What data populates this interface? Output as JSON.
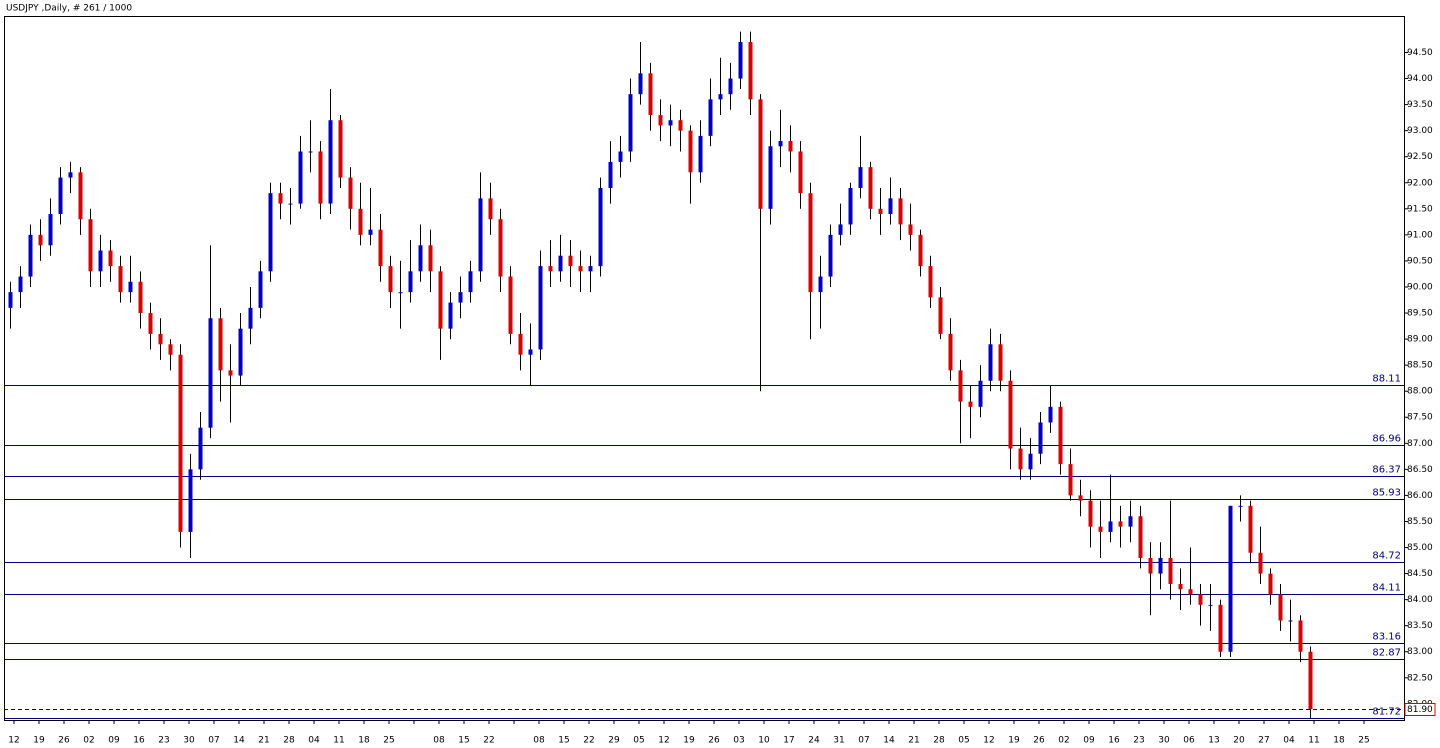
{
  "chart_data": {
    "type": "candlestick",
    "title": "USDJPY ,Daily, # 261 / 1000",
    "up_color": "#0000cc",
    "down_color": "#dd0000",
    "level_color": "#000080",
    "ylim": [
      81.69,
      95.2
    ],
    "yticks": [
      {
        "value": 82,
        "label": "82.00"
      },
      {
        "value": 82.5,
        "label": "82.50"
      },
      {
        "value": 83,
        "label": "83.00"
      },
      {
        "value": 83.5,
        "label": "83.50"
      },
      {
        "value": 84,
        "label": "84.00"
      },
      {
        "value": 84.5,
        "label": "84.50"
      },
      {
        "value": 85,
        "label": "85.00"
      },
      {
        "value": 85.5,
        "label": "85.50"
      },
      {
        "value": 86,
        "label": "86.00"
      },
      {
        "value": 86.5,
        "label": "86.50"
      },
      {
        "value": 87,
        "label": "87.00"
      },
      {
        "value": 87.5,
        "label": "87.50"
      },
      {
        "value": 88,
        "label": "88.00"
      },
      {
        "value": 88.5,
        "label": "88.50"
      },
      {
        "value": 89,
        "label": "89.00"
      },
      {
        "value": 89.5,
        "label": "89.50"
      },
      {
        "value": 90,
        "label": "90.00"
      },
      {
        "value": 90.5,
        "label": "90.50"
      },
      {
        "value": 91,
        "label": "91.00"
      },
      {
        "value": 91.5,
        "label": "91.50"
      },
      {
        "value": 92,
        "label": "92.00"
      },
      {
        "value": 92.5,
        "label": "92.50"
      },
      {
        "value": 93,
        "label": "93.00"
      },
      {
        "value": 93.5,
        "label": "93.50"
      },
      {
        "value": 94,
        "label": "94.00"
      },
      {
        "value": 94.5,
        "label": "94.50"
      }
    ],
    "levels": [
      88.11,
      86.96,
      86.37,
      85.93,
      84.72,
      84.11,
      83.16,
      82.87,
      81.72
    ],
    "current_price": {
      "value": 81.9,
      "label": "81.90"
    },
    "x_labels": [
      "12",
      "19",
      "26",
      "02",
      "09",
      "16",
      "23",
      "30",
      "07",
      "14",
      "21",
      "28",
      "04",
      "11",
      "18",
      "25",
      null,
      "08",
      "15",
      "22",
      null,
      "08",
      "15",
      "22",
      "29",
      "05",
      "12",
      "19",
      "26",
      "03",
      "10",
      "17",
      "24",
      "31",
      "07",
      "14",
      "21",
      "28",
      "05",
      "12",
      "19",
      "26",
      "02",
      "09",
      "16",
      "23",
      "30",
      "06",
      "13",
      "20",
      "27",
      "04",
      "11",
      "18",
      "25"
    ],
    "ohlc": [
      [
        89.6,
        90.1,
        89.2,
        89.9
      ],
      [
        89.9,
        90.4,
        89.6,
        90.2
      ],
      [
        90.2,
        91.2,
        90.0,
        91.0
      ],
      [
        91.0,
        91.3,
        90.5,
        90.8
      ],
      [
        90.8,
        91.7,
        90.6,
        91.4
      ],
      [
        91.4,
        92.3,
        91.2,
        92.1
      ],
      [
        92.1,
        92.4,
        91.8,
        92.2
      ],
      [
        92.2,
        92.3,
        91.0,
        91.3
      ],
      [
        91.3,
        91.5,
        90.0,
        90.3
      ],
      [
        90.3,
        91.0,
        90.0,
        90.7
      ],
      [
        90.7,
        90.9,
        90.1,
        90.4
      ],
      [
        90.4,
        90.6,
        89.7,
        89.9
      ],
      [
        89.9,
        90.6,
        89.7,
        90.1
      ],
      [
        90.1,
        90.3,
        89.2,
        89.5
      ],
      [
        89.5,
        89.7,
        88.8,
        89.1
      ],
      [
        89.1,
        89.4,
        88.6,
        88.9
      ],
      [
        88.9,
        89.0,
        88.4,
        88.7
      ],
      [
        88.7,
        88.9,
        85.0,
        85.3
      ],
      [
        85.3,
        86.8,
        84.8,
        86.5
      ],
      [
        86.5,
        87.6,
        86.3,
        87.3
      ],
      [
        87.3,
        90.8,
        87.1,
        89.4
      ],
      [
        89.4,
        89.6,
        87.8,
        88.4
      ],
      [
        88.4,
        88.9,
        87.4,
        88.3
      ],
      [
        88.3,
        89.5,
        88.1,
        89.2
      ],
      [
        89.2,
        90.0,
        88.9,
        89.6
      ],
      [
        89.6,
        90.5,
        89.4,
        90.3
      ],
      [
        90.3,
        92.0,
        90.1,
        91.8
      ],
      [
        91.8,
        92.0,
        91.3,
        91.6
      ],
      [
        91.6,
        91.9,
        91.2,
        91.6
      ],
      [
        91.6,
        92.9,
        91.5,
        92.6
      ],
      [
        92.6,
        93.2,
        92.2,
        92.6
      ],
      [
        92.6,
        92.8,
        91.3,
        91.6
      ],
      [
        91.6,
        93.8,
        91.4,
        93.2
      ],
      [
        93.2,
        93.3,
        91.9,
        92.1
      ],
      [
        92.1,
        92.3,
        91.1,
        91.5
      ],
      [
        91.5,
        92.0,
        90.8,
        91.0
      ],
      [
        91.0,
        91.9,
        90.8,
        91.1
      ],
      [
        91.1,
        91.4,
        90.1,
        90.4
      ],
      [
        90.4,
        90.6,
        89.6,
        89.9
      ],
      [
        89.9,
        90.5,
        89.2,
        89.9
      ],
      [
        89.9,
        90.9,
        89.7,
        90.3
      ],
      [
        90.3,
        91.2,
        90.1,
        90.8
      ],
      [
        90.8,
        91.1,
        89.9,
        90.3
      ],
      [
        90.3,
        90.4,
        88.6,
        89.2
      ],
      [
        89.2,
        89.9,
        89.0,
        89.7
      ],
      [
        89.7,
        90.2,
        89.4,
        89.9
      ],
      [
        89.9,
        90.5,
        89.7,
        90.3
      ],
      [
        90.3,
        92.2,
        90.1,
        91.7
      ],
      [
        91.7,
        92.0,
        91.0,
        91.3
      ],
      [
        91.3,
        91.5,
        89.9,
        90.2
      ],
      [
        90.2,
        90.4,
        88.9,
        89.1
      ],
      [
        89.1,
        89.5,
        88.4,
        88.7
      ],
      [
        88.7,
        89.3,
        88.1,
        88.8
      ],
      [
        88.8,
        90.7,
        88.6,
        90.4
      ],
      [
        90.4,
        90.9,
        90.0,
        90.3
      ],
      [
        90.3,
        91.0,
        90.1,
        90.6
      ],
      [
        90.6,
        90.9,
        90.0,
        90.4
      ],
      [
        90.4,
        90.7,
        89.9,
        90.3
      ],
      [
        90.3,
        90.6,
        89.9,
        90.4
      ],
      [
        90.4,
        92.1,
        90.2,
        91.9
      ],
      [
        91.9,
        92.8,
        91.6,
        92.4
      ],
      [
        92.4,
        92.9,
        92.1,
        92.6
      ],
      [
        92.6,
        94.0,
        92.4,
        93.7
      ],
      [
        93.7,
        94.7,
        93.5,
        94.1
      ],
      [
        94.1,
        94.3,
        93.0,
        93.3
      ],
      [
        93.3,
        93.6,
        92.8,
        93.1
      ],
      [
        93.1,
        93.5,
        92.7,
        93.2
      ],
      [
        93.2,
        93.4,
        92.6,
        93.0
      ],
      [
        93.0,
        93.1,
        91.6,
        92.2
      ],
      [
        92.2,
        93.2,
        92.0,
        92.9
      ],
      [
        92.9,
        94.0,
        92.7,
        93.6
      ],
      [
        93.6,
        94.4,
        93.3,
        93.7
      ],
      [
        93.7,
        94.3,
        93.4,
        94.0
      ],
      [
        94.0,
        94.9,
        93.8,
        94.7
      ],
      [
        94.7,
        94.9,
        93.3,
        93.6
      ],
      [
        93.6,
        93.7,
        88.0,
        91.5
      ],
      [
        91.5,
        93.0,
        91.2,
        92.7
      ],
      [
        92.7,
        93.4,
        92.3,
        92.8
      ],
      [
        92.8,
        93.1,
        92.2,
        92.6
      ],
      [
        92.6,
        92.8,
        91.5,
        91.8
      ],
      [
        91.8,
        92.0,
        89.0,
        89.9
      ],
      [
        89.9,
        90.6,
        89.2,
        90.2
      ],
      [
        90.2,
        91.2,
        90.0,
        91.0
      ],
      [
        91.0,
        91.6,
        90.8,
        91.2
      ],
      [
        91.2,
        92.0,
        91.0,
        91.9
      ],
      [
        91.9,
        92.9,
        91.7,
        92.3
      ],
      [
        92.3,
        92.4,
        91.3,
        91.5
      ],
      [
        91.5,
        91.9,
        91.0,
        91.4
      ],
      [
        91.4,
        92.1,
        91.2,
        91.7
      ],
      [
        91.7,
        91.9,
        90.9,
        91.2
      ],
      [
        91.2,
        91.6,
        90.7,
        91.0
      ],
      [
        91.0,
        91.1,
        90.2,
        90.4
      ],
      [
        90.4,
        90.6,
        89.6,
        89.8
      ],
      [
        89.8,
        90.0,
        89.0,
        89.1
      ],
      [
        89.1,
        89.4,
        88.2,
        88.4
      ],
      [
        88.4,
        88.6,
        87.0,
        87.8
      ],
      [
        87.8,
        88.1,
        87.1,
        87.7
      ],
      [
        87.7,
        88.5,
        87.5,
        88.2
      ],
      [
        88.2,
        89.2,
        88.0,
        88.9
      ],
      [
        88.9,
        89.1,
        88.0,
        88.2
      ],
      [
        88.2,
        88.4,
        86.5,
        86.9
      ],
      [
        86.9,
        87.3,
        86.3,
        86.5
      ],
      [
        86.5,
        87.1,
        86.3,
        86.8
      ],
      [
        86.8,
        87.6,
        86.6,
        87.4
      ],
      [
        87.4,
        88.1,
        87.2,
        87.7
      ],
      [
        87.7,
        87.8,
        86.4,
        86.6
      ],
      [
        86.6,
        86.9,
        85.9,
        86.0
      ],
      [
        86.0,
        86.3,
        85.6,
        85.9
      ],
      [
        85.9,
        86.1,
        85.0,
        85.4
      ],
      [
        85.4,
        85.9,
        84.8,
        85.3
      ],
      [
        85.3,
        86.4,
        85.1,
        85.5
      ],
      [
        85.5,
        85.8,
        85.0,
        85.4
      ],
      [
        85.4,
        85.9,
        85.1,
        85.6
      ],
      [
        85.6,
        85.8,
        84.6,
        84.8
      ],
      [
        84.8,
        85.1,
        83.7,
        84.5
      ],
      [
        84.5,
        85.1,
        84.2,
        84.8
      ],
      [
        84.8,
        85.9,
        84.0,
        84.3
      ],
      [
        84.3,
        84.6,
        83.8,
        84.2
      ],
      [
        84.2,
        85.0,
        83.9,
        84.1
      ],
      [
        84.1,
        84.3,
        83.5,
        83.9
      ],
      [
        83.9,
        84.3,
        83.4,
        83.9
      ],
      [
        83.9,
        84.0,
        82.9,
        83.0
      ],
      [
        83.0,
        85.8,
        82.9,
        85.8
      ],
      [
        85.8,
        86.0,
        85.5,
        85.8
      ],
      [
        85.8,
        85.9,
        84.7,
        84.9
      ],
      [
        84.9,
        85.4,
        84.3,
        84.5
      ],
      [
        84.5,
        84.6,
        83.9,
        84.1
      ],
      [
        84.1,
        84.3,
        83.4,
        83.6
      ],
      [
        83.6,
        84.0,
        83.2,
        83.6
      ],
      [
        83.6,
        83.7,
        82.8,
        83.0
      ],
      [
        83.0,
        83.1,
        81.72,
        81.9
      ]
    ]
  }
}
